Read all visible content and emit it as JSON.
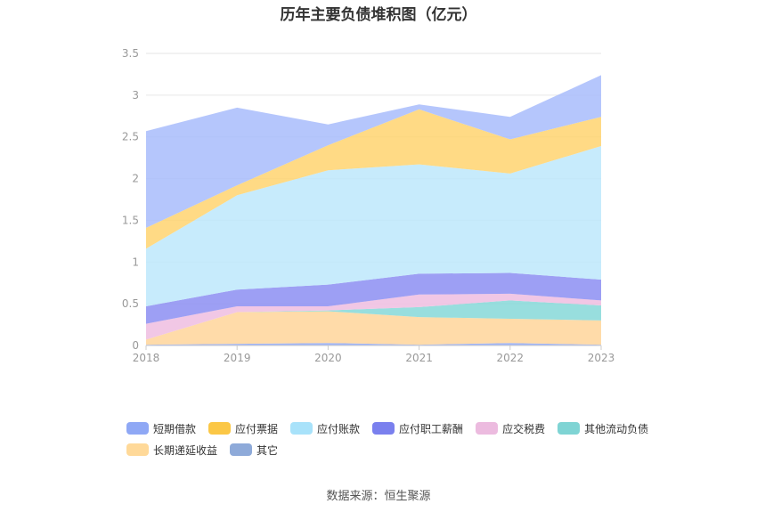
{
  "chart_data": {
    "type": "area",
    "title": "历年主要负债堆积图（亿元）",
    "categories": [
      "2018",
      "2019",
      "2020",
      "2021",
      "2022",
      "2023"
    ],
    "ylim": [
      0,
      3.5
    ],
    "yticks": [
      "0",
      "0.5",
      "1",
      "1.5",
      "2",
      "2.5",
      "3",
      "3.5"
    ],
    "stacked": true,
    "grid": true,
    "legend_position": "bottom",
    "series": [
      {
        "name": "短期借款",
        "color": "#8fa8f5",
        "values": [
          0.01,
          0.02,
          0.03,
          0.01,
          0.03,
          0.01
        ]
      },
      {
        "name": "长期递延收益",
        "color": "#ffd59a",
        "values": [
          0.06,
          0.38,
          0.38,
          0.33,
          0.29,
          0.29
        ]
      },
      {
        "name": "其他流动负债",
        "color": "#86d8d8",
        "values": [
          0.0,
          0.0,
          0.01,
          0.12,
          0.22,
          0.18
        ]
      },
      {
        "name": "应交税费",
        "color": "#eebde0",
        "values": [
          0.19,
          0.07,
          0.05,
          0.15,
          0.08,
          0.06
        ]
      },
      {
        "name": "应付职工薪酬",
        "color": "#8c8ef2",
        "values": [
          0.21,
          0.2,
          0.26,
          0.25,
          0.25,
          0.25
        ]
      },
      {
        "name": "应付账款",
        "color": "#bde8fb",
        "values": [
          0.69,
          1.13,
          1.37,
          1.31,
          1.19,
          1.6
        ]
      },
      {
        "name": "应付票据",
        "color": "#ffd470",
        "values": [
          0.25,
          0.12,
          0.3,
          0.66,
          0.41,
          0.35
        ]
      },
      {
        "name": "其它",
        "color": "#a8bcfc",
        "values": [
          1.16,
          0.93,
          0.25,
          0.06,
          0.27,
          0.5
        ]
      }
    ],
    "legend": [
      {
        "name": "短期借款",
        "color": "#8fa8f5"
      },
      {
        "name": "应付票据",
        "color": "#fbc746"
      },
      {
        "name": "应付账款",
        "color": "#a8e2fa"
      },
      {
        "name": "应付职工薪酬",
        "color": "#7a80ee"
      },
      {
        "name": "应交税费",
        "color": "#ecbbdf"
      },
      {
        "name": "其他流动负债",
        "color": "#7fd4d4"
      },
      {
        "name": "长期递延收益",
        "color": "#ffd999"
      },
      {
        "name": "其它",
        "color": "#8eaad9"
      }
    ],
    "source": "数据来源：恒生聚源"
  }
}
